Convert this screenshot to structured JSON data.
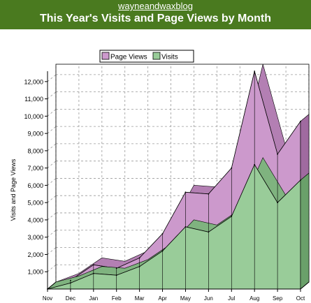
{
  "header": {
    "site_link": "wayneandwaxblog",
    "title": "This Year's Visits and Page Views by Month"
  },
  "colors": {
    "header_bg": "#4a7a1f",
    "page_views_fill": "#cc99cc",
    "visits_fill": "#99cc99"
  },
  "chart_data": {
    "type": "area",
    "title": "This Year's Visits and Page Views by Month",
    "xlabel": "",
    "ylabel": "Visits and Page Views",
    "categories": [
      "Nov",
      "Dec",
      "Jan",
      "Feb",
      "Mar",
      "Apr",
      "May",
      "Jun",
      "Jul",
      "Aug",
      "Sep",
      "Oct"
    ],
    "series": [
      {
        "name": "Page Views",
        "values": [
          0,
          500,
          1400,
          1200,
          1800,
          3200,
          5600,
          5500,
          7000,
          12600,
          7800,
          9700
        ]
      },
      {
        "name": "Visits",
        "values": [
          0,
          350,
          900,
          800,
          1300,
          2200,
          3600,
          3300,
          4200,
          7200,
          5000,
          6300
        ]
      }
    ],
    "ylim": [
      0,
      12600
    ],
    "yticks": [
      "1,000",
      "2,000",
      "3,000",
      "4,000",
      "5,000",
      "6,000",
      "7,000",
      "8,000",
      "9,000",
      "10,000",
      "11,000",
      "12,000"
    ],
    "ytick_values": [
      1000,
      2000,
      3000,
      4000,
      5000,
      6000,
      7000,
      8000,
      9000,
      10000,
      11000,
      12000
    ],
    "grid": true,
    "legend_position": "top"
  }
}
